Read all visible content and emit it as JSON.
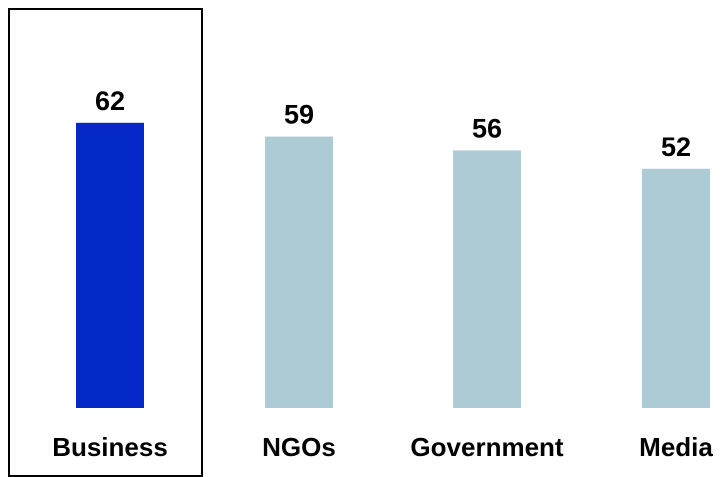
{
  "chart_data": {
    "type": "bar",
    "categories": [
      "Business",
      "NGOs",
      "Government",
      "Media"
    ],
    "values": [
      62,
      59,
      56,
      52
    ],
    "highlighted_category": "Business",
    "title": "",
    "xlabel": "",
    "ylabel": "",
    "ylim": [
      0,
      62
    ],
    "grid": false,
    "colors": {
      "highlight": "#0529c8",
      "default": "#adcbd4",
      "label": "#000000",
      "box_stroke": "#000000"
    }
  }
}
